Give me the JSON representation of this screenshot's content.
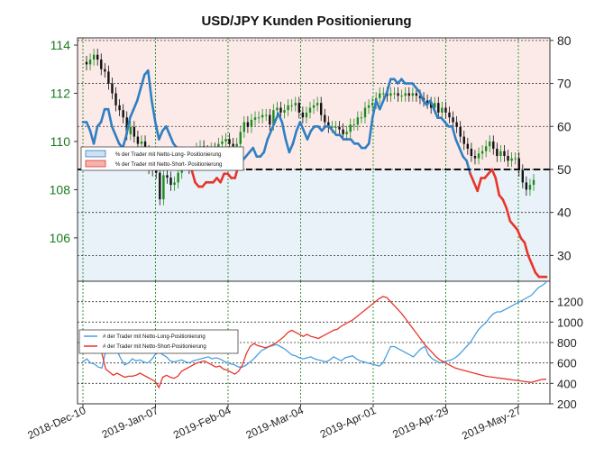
{
  "chart_data": [
    {
      "type": "candlestick",
      "title": "USD/JPY Kunden Positionierung",
      "left_axis": {
        "range": [
          104.2,
          114.3
        ],
        "ticks": [
          106,
          108,
          110,
          112,
          114
        ],
        "color": "#1a7a1a"
      },
      "right_axis": {
        "range": [
          24,
          80.6
        ],
        "ticks": [
          30,
          40,
          50,
          60,
          70,
          80
        ]
      },
      "threshold_line": 50,
      "x_ticks": [
        "2018-Dec-10",
        "2019-Jan-07",
        "2019-Feb-04",
        "2019-Mar-04",
        "2019-Apr-01",
        "2019-Apr-29",
        "2019-May-27"
      ],
      "grid": true,
      "legend": {
        "placement": "center-left",
        "entries": [
          {
            "label": "% der Trader mit Netto-Long- Positionierung",
            "color": "#2f7fc1"
          },
          {
            "label": "% der Trader mit Netto-Short- Positionierung",
            "color": "#e8352a"
          }
        ]
      },
      "price_close": [
        113.2,
        113.4,
        113.6,
        113.4,
        113.0,
        112.9,
        112.4,
        112.0,
        111.5,
        111.3,
        111.0,
        110.3,
        110.6,
        110.2,
        109.9,
        110.0,
        109.6,
        108.9,
        108.8,
        108.7,
        107.6,
        108.6,
        108.5,
        108.2,
        108.3,
        108.7,
        109.1,
        109.2,
        108.9,
        109.4,
        109.7,
        109.8,
        109.6,
        109.4,
        109.7,
        109.6,
        109.9,
        110.0,
        110.1,
        109.9,
        109.8,
        109.9,
        110.4,
        110.8,
        110.6,
        110.9,
        111.0,
        111.0,
        111.1,
        111.1,
        110.7,
        111.3,
        111.4,
        111.2,
        111.3,
        111.5,
        111.5,
        111.6,
        111.2,
        111.0,
        111.2,
        111.4,
        111.5,
        111.6,
        111.1,
        110.8,
        110.6,
        110.6,
        110.6,
        110.5,
        110.3,
        110.4,
        110.7,
        110.7,
        111.0,
        111.0,
        111.4,
        111.5,
        111.6,
        111.8,
        112.0,
        112.0,
        111.9,
        112.0,
        112.0,
        111.9,
        111.9,
        112.0,
        111.9,
        112.0,
        111.9,
        111.8,
        111.7,
        111.6,
        111.4,
        111.6,
        111.2,
        111.4,
        111.2,
        111.0,
        110.8,
        110.6,
        110.2,
        109.9,
        109.7,
        109.4,
        109.3,
        109.5,
        109.6,
        109.8,
        110.0,
        109.7,
        109.4,
        109.6,
        109.4,
        109.2,
        109.3,
        109.3,
        108.8,
        108.3,
        108.0,
        108.2,
        108.4
      ],
      "series": [
        {
          "name": "% der Trader mit Netto-Long- Positionierung",
          "values": [
            61,
            61,
            59,
            56,
            60,
            61,
            64,
            64,
            60,
            58,
            56,
            55,
            58,
            62,
            64,
            66,
            69,
            72,
            73,
            66,
            61,
            57,
            59,
            60,
            58,
            56,
            55,
            54,
            54,
            54,
            50,
            47,
            46,
            46,
            47,
            47,
            47,
            48,
            47,
            49,
            49,
            48,
            48,
            51,
            52,
            53,
            54,
            55,
            53,
            53,
            54,
            57,
            59,
            61,
            63,
            61,
            57,
            54,
            56,
            59,
            61,
            59,
            57,
            59,
            60,
            60,
            59,
            60,
            60,
            59,
            58,
            58,
            57,
            57,
            57,
            56,
            56,
            55,
            55,
            56,
            62,
            66,
            64,
            66,
            68,
            71,
            71,
            70,
            71,
            70,
            70,
            70,
            69,
            68,
            66,
            65,
            66,
            64,
            62,
            62,
            61,
            60,
            60,
            57,
            55,
            53,
            52,
            49,
            47,
            45,
            48,
            48,
            49,
            50,
            48,
            44,
            43,
            41,
            38,
            37,
            36,
            34,
            33,
            30,
            28,
            26,
            25,
            25,
            25
          ]
        }
      ]
    },
    {
      "type": "line",
      "right_axis": {
        "range": [
          200,
          1400
        ],
        "ticks": [
          200,
          400,
          600,
          800,
          1000,
          1200
        ]
      },
      "grid": true,
      "legend": {
        "placement": "center-left",
        "entries": [
          {
            "label": "# der Trader mit Netto-Long-Positionierung",
            "color": "#4a9fe0"
          },
          {
            "label": "# der Trader mit Netto-Short-Positionierung",
            "color": "#e8352a"
          }
        ]
      },
      "series": [
        {
          "name": "# der Trader mit Netto-Long-Positionierung",
          "color": "#4a9fe0",
          "values": [
            610,
            640,
            600,
            590,
            560,
            550,
            720,
            780,
            820,
            720,
            640,
            580,
            600,
            640,
            620,
            630,
            610,
            600,
            630,
            680,
            710,
            680,
            660,
            620,
            610,
            620,
            630,
            610,
            600,
            620,
            630,
            640,
            650,
            660,
            640,
            650,
            640,
            620,
            600,
            590,
            580,
            560,
            560,
            580,
            610,
            640,
            680,
            720,
            740,
            760,
            770,
            780,
            760,
            740,
            710,
            680,
            670,
            650,
            640,
            650,
            660,
            640,
            630,
            620,
            610,
            630,
            660,
            640,
            620,
            650,
            660,
            670,
            640,
            620,
            610,
            600,
            590,
            580,
            570,
            600,
            680,
            760,
            760,
            740,
            720,
            700,
            680,
            660,
            700,
            740,
            760,
            680,
            640,
            620,
            600,
            610,
            620,
            630,
            650,
            680,
            720,
            760,
            800,
            860,
            920,
            960,
            990,
            1040,
            1080,
            1100,
            1100,
            1120,
            1140,
            1160,
            1180,
            1200,
            1220,
            1240,
            1260,
            1300,
            1340,
            1360,
            1390
          ]
        },
        {
          "name": "# der Trader mit Netto-Short-Positionierung",
          "color": "#e8352a",
          "values": [
            850,
            860,
            820,
            780,
            740,
            690,
            540,
            510,
            480,
            500,
            480,
            460,
            470,
            470,
            480,
            500,
            480,
            460,
            440,
            420,
            360,
            460,
            480,
            460,
            450,
            470,
            520,
            540,
            560,
            580,
            600,
            610,
            620,
            600,
            580,
            560,
            570,
            540,
            530,
            510,
            490,
            520,
            580,
            690,
            760,
            790,
            770,
            760,
            750,
            760,
            780,
            800,
            830,
            860,
            900,
            920,
            900,
            880,
            860,
            880,
            860,
            850,
            840,
            860,
            880,
            900,
            920,
            930,
            960,
            980,
            1000,
            1020,
            1050,
            1080,
            1110,
            1140,
            1170,
            1200,
            1230,
            1250,
            1240,
            1200,
            1160,
            1120,
            1080,
            1030,
            980,
            930,
            880,
            830,
            780,
            740,
            700,
            660,
            630,
            610,
            590,
            570,
            550,
            540,
            530,
            520,
            510,
            500,
            490,
            480,
            470,
            465,
            460,
            455,
            450,
            445,
            440,
            435,
            430,
            425,
            420,
            415,
            410,
            420,
            430,
            440,
            440
          ]
        }
      ]
    }
  ]
}
